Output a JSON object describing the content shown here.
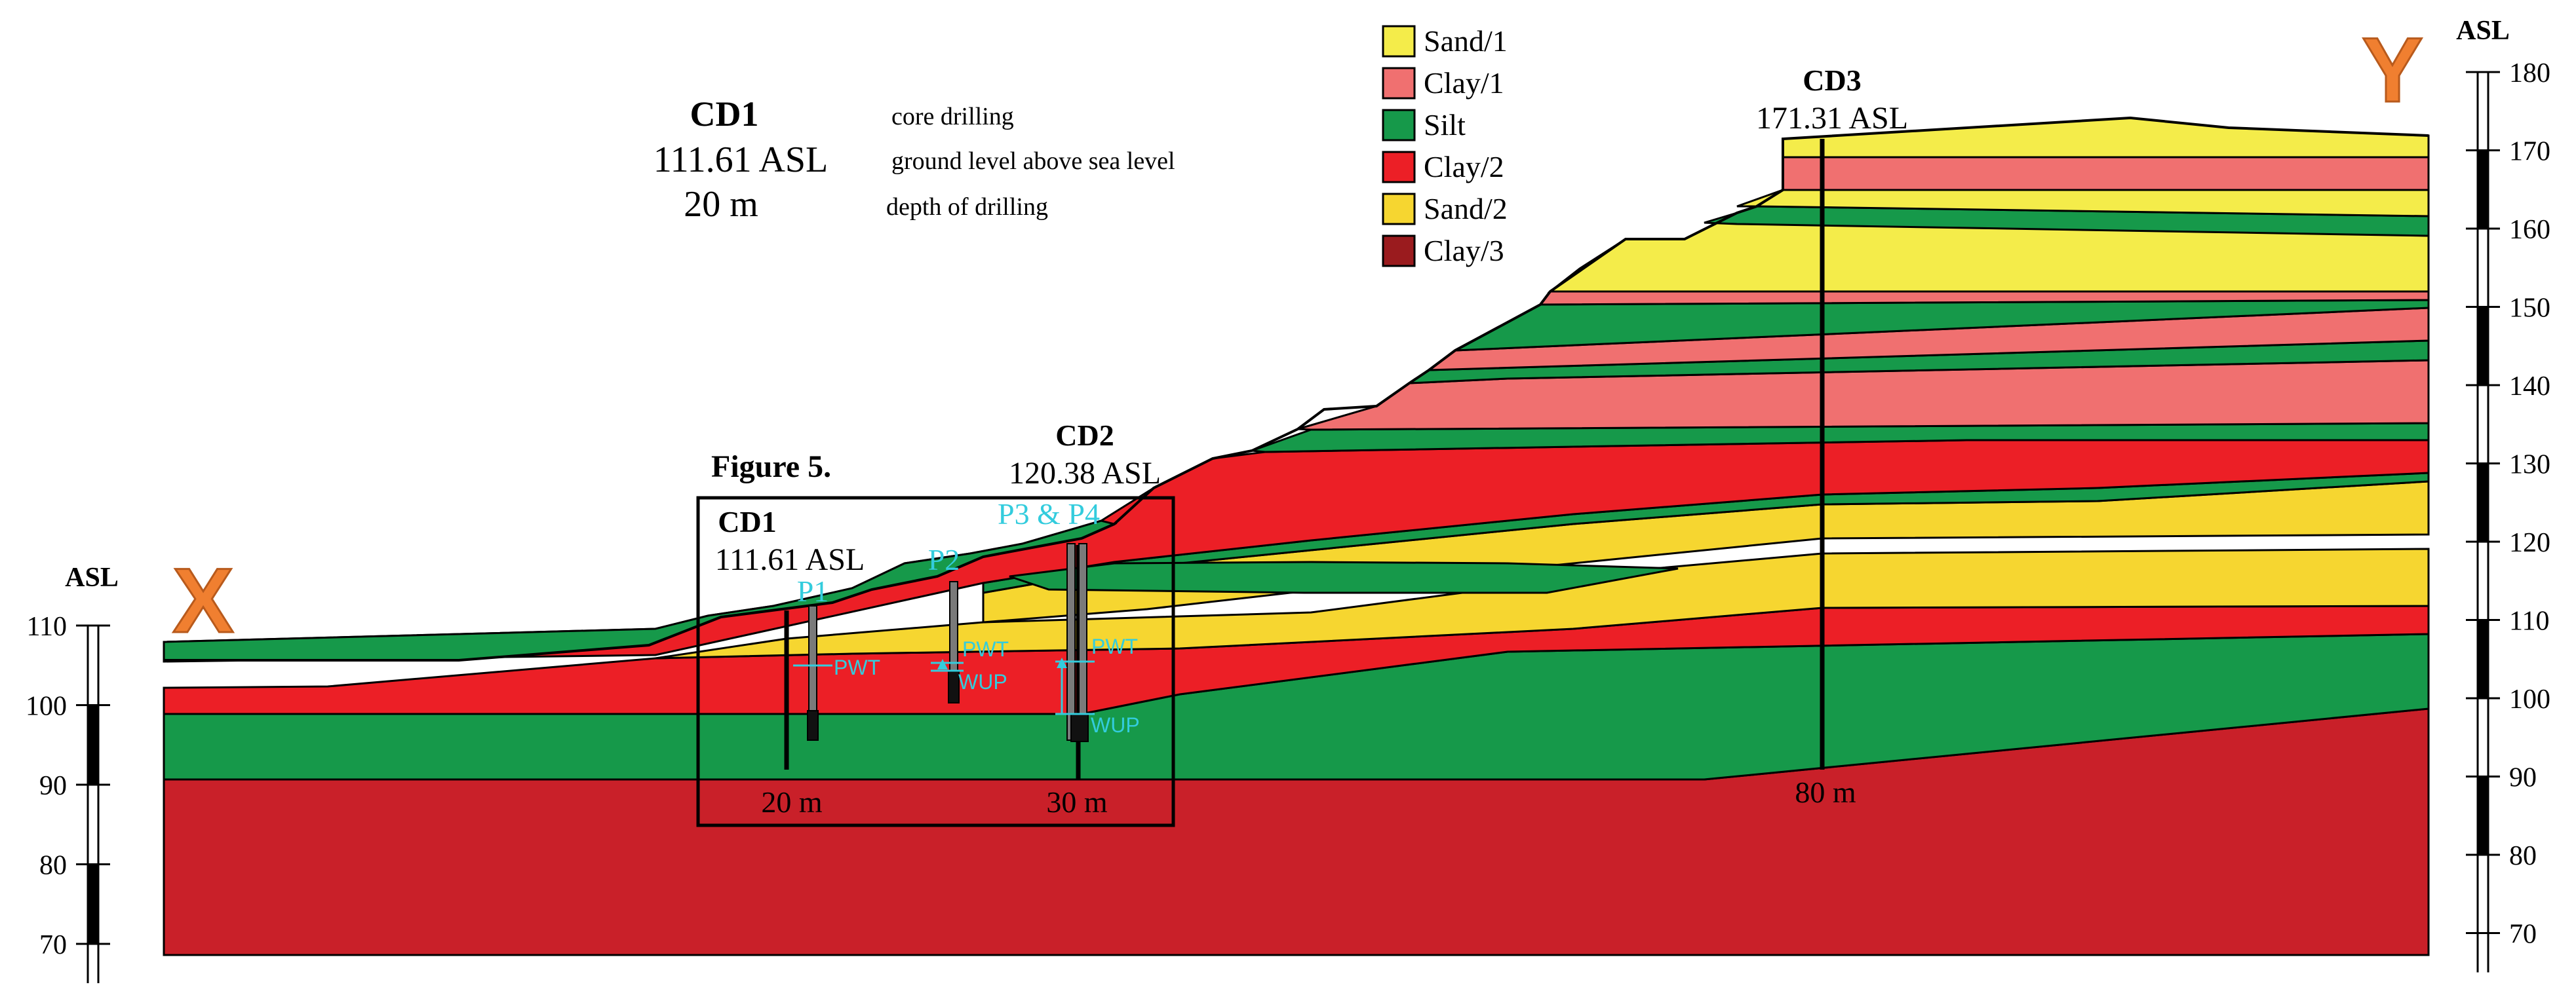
{
  "section_labels": {
    "left": "X",
    "right": "Y"
  },
  "axis": {
    "title": "ASL",
    "left_ticks": [
      "110",
      "100",
      "90",
      "80",
      "70"
    ],
    "right_ticks": [
      "180",
      "170",
      "160",
      "150",
      "140",
      "130",
      "120",
      "110",
      "100",
      "90",
      "80",
      "70"
    ]
  },
  "legend_key": {
    "name": "CD1",
    "asl": "111.61  ASL",
    "depth": "20 m",
    "name_desc": "core drilling",
    "asl_desc": "ground level above sea level",
    "depth_desc": "depth of drilling"
  },
  "legend": [
    {
      "label": "Sand/1",
      "color": "#f4ec4a"
    },
    {
      "label": "Clay/1",
      "color": "#f07070"
    },
    {
      "label": "Silt",
      "color": "#16994a"
    },
    {
      "label": "Clay/2",
      "color": "#ec1f26"
    },
    {
      "label": "Sand/2",
      "color": "#f6d630"
    },
    {
      "label": "Clay/3",
      "color": "#9a1b1e"
    }
  ],
  "boreholes": {
    "cd1": {
      "name": "CD1",
      "asl": "111.61  ASL",
      "depth": "20 m"
    },
    "cd2": {
      "name": "CD2",
      "asl": "120.38 ASL",
      "depth": "30 m"
    },
    "cd3": {
      "name": "CD3",
      "asl": "171.31 ASL",
      "depth": "80 m"
    }
  },
  "figure_box_label": "Figure 5.",
  "piezometers": {
    "p1": "P1",
    "p2": "P2",
    "p34": "P3 & P4"
  },
  "water_labels": {
    "pwt": "PWT",
    "wup": "WUP"
  }
}
